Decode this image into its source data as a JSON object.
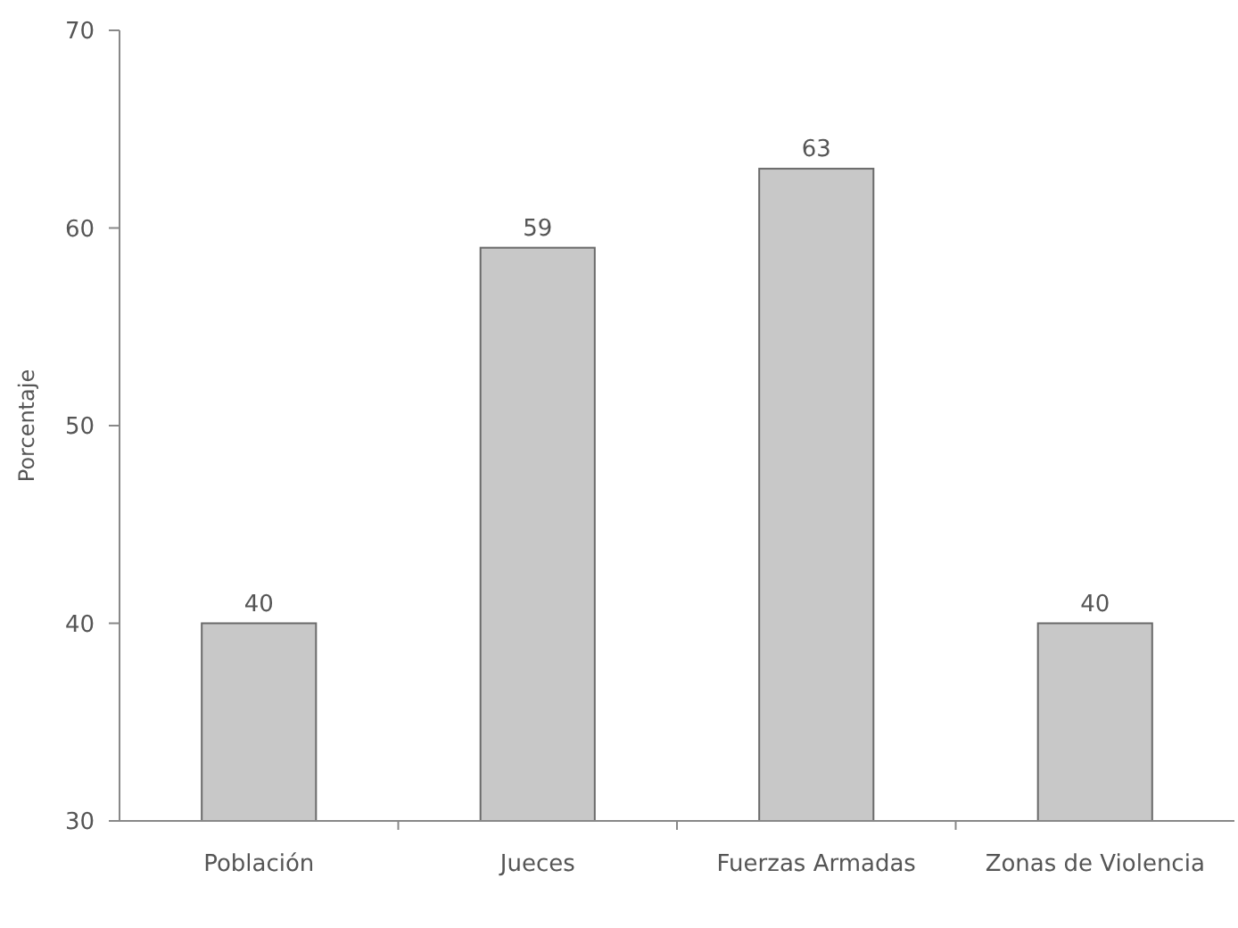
{
  "chart_data": {
    "type": "bar",
    "ylabel": "Porcentaje",
    "categories": [
      "Población",
      "Jueces",
      "Fuerzas Armadas",
      "Zonas de Violencia"
    ],
    "values": [
      40,
      59,
      63,
      40
    ],
    "color": "#c8c8c8",
    "ylim": [
      30,
      70
    ],
    "yticks": [
      30,
      40,
      50,
      60,
      70
    ],
    "data_labels": true
  }
}
